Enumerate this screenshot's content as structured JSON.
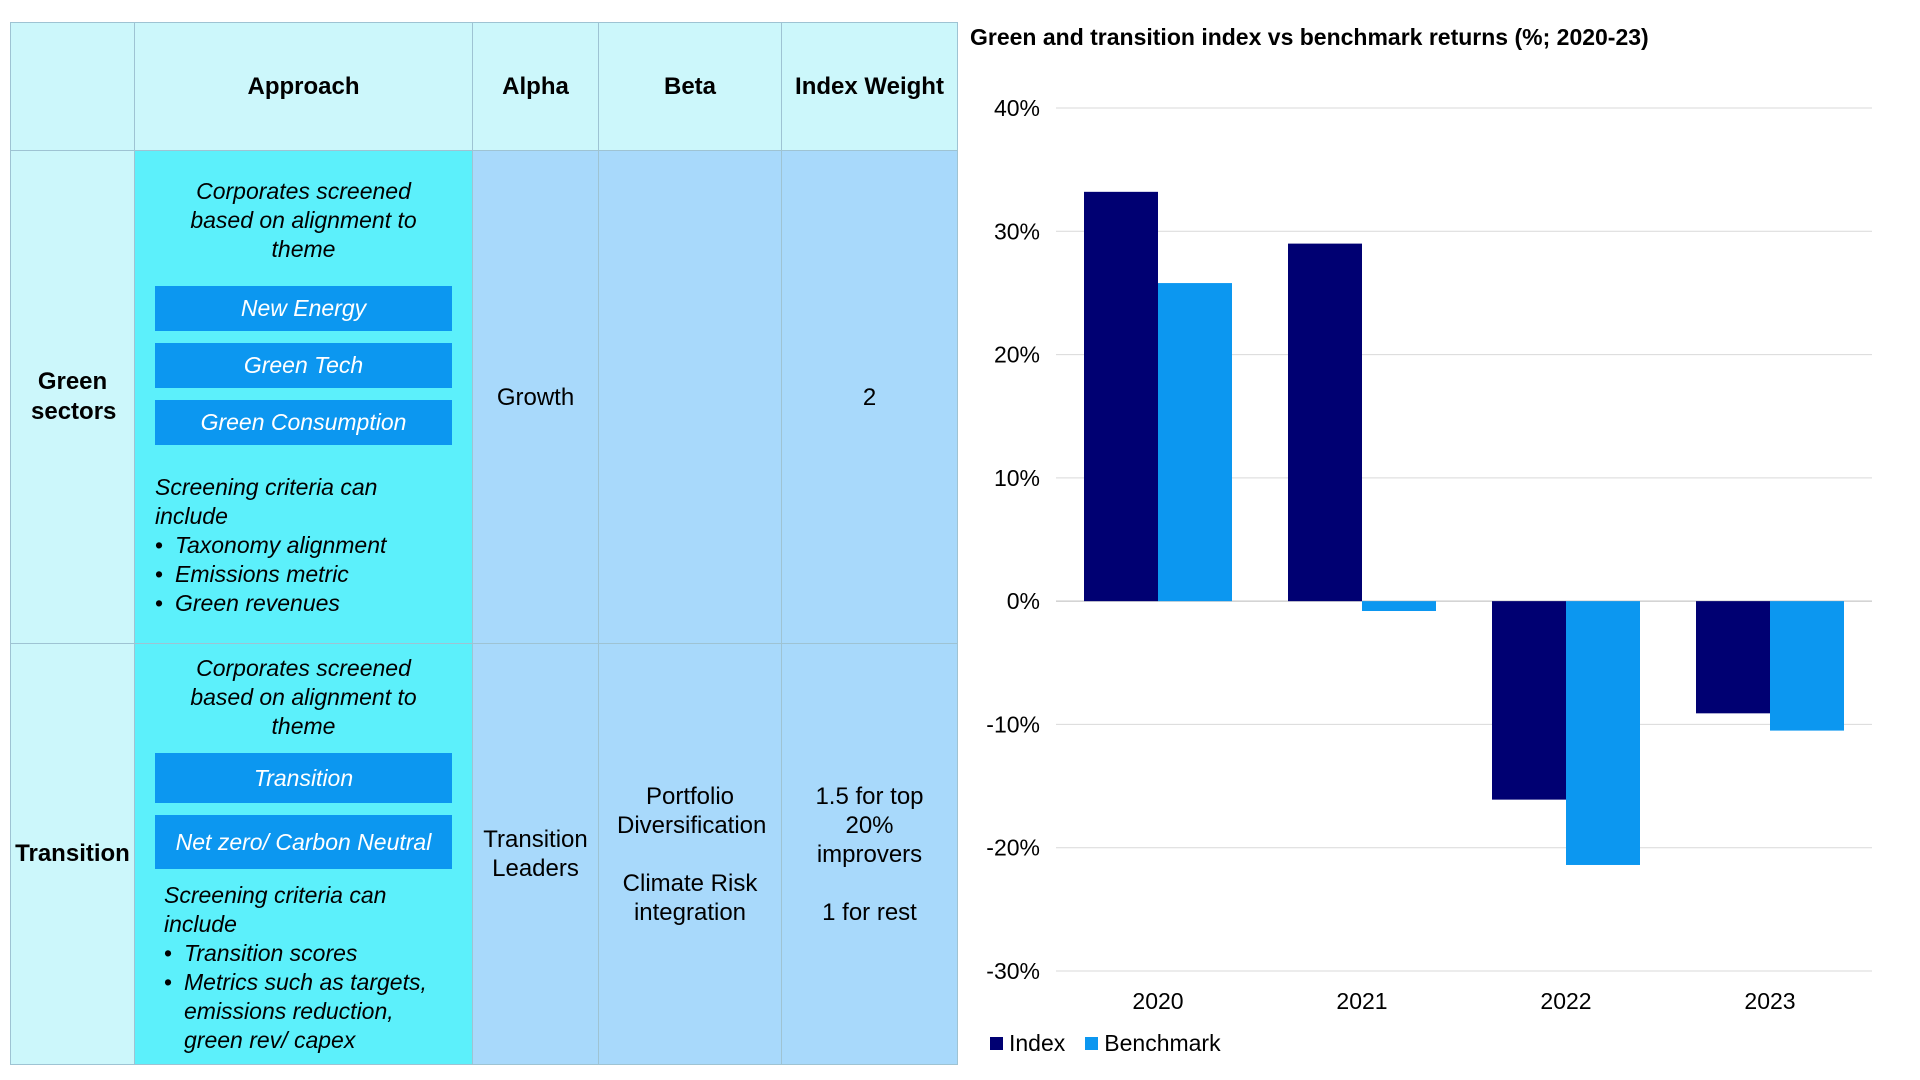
{
  "table": {
    "headers": [
      "",
      "Approach",
      "Alpha",
      "Beta",
      "Index Weight"
    ],
    "rows": [
      {
        "label": "Green sectors",
        "intro": "Corporates screened based on alignment to theme",
        "themes": [
          "New Energy",
          "Green Tech",
          "Green Consumption"
        ],
        "criteria_title": "Screening criteria can include",
        "criteria": [
          "Taxonomy alignment",
          "Emissions metric",
          "Green revenues"
        ],
        "alpha": "Growth",
        "beta": "",
        "weight": "2"
      },
      {
        "label": "Transition",
        "intro": "Corporates screened based on alignment to theme",
        "themes": [
          "Transition",
          "Net zero/ Carbon Neutral"
        ],
        "criteria_title": "Screening criteria can include",
        "criteria": [
          "Transition scores",
          "Metrics such as targets, emissions reduction, green rev/ capex"
        ],
        "alpha": "Transition Leaders",
        "beta_1": "Portfolio Diversification",
        "beta_2": "Climate Risk integration",
        "weight_1": "1.5 for top 20% improvers",
        "weight_2": "1 for rest"
      }
    ]
  },
  "chart_data": {
    "type": "bar",
    "title": "Green and transition index vs benchmark returns (%;  2020-23)",
    "categories": [
      "2020",
      "2021",
      "2022",
      "2023"
    ],
    "series": [
      {
        "name": "Index",
        "values": [
          33.2,
          29.0,
          -16.1,
          -9.1
        ],
        "color": "#000072"
      },
      {
        "name": "Benchmark",
        "values": [
          25.8,
          -0.8,
          -21.4,
          -10.5
        ],
        "color": "#0c97f0"
      }
    ],
    "ylim": [
      -30,
      40
    ],
    "yticks": [
      40,
      30,
      20,
      10,
      0,
      -10,
      -20,
      -30
    ],
    "ytick_labels": [
      "40%",
      "30%",
      "20%",
      "10%",
      "0%",
      "-10%",
      "-20%",
      "-30%"
    ],
    "grid": true,
    "legend_position": "bottom-left"
  },
  "colors": {
    "approach_bg": "#5cf0fb",
    "header_bg": "#ccf7fb",
    "cell_bg": "#a8d9fb",
    "theme_box": "#0c97f0"
  }
}
